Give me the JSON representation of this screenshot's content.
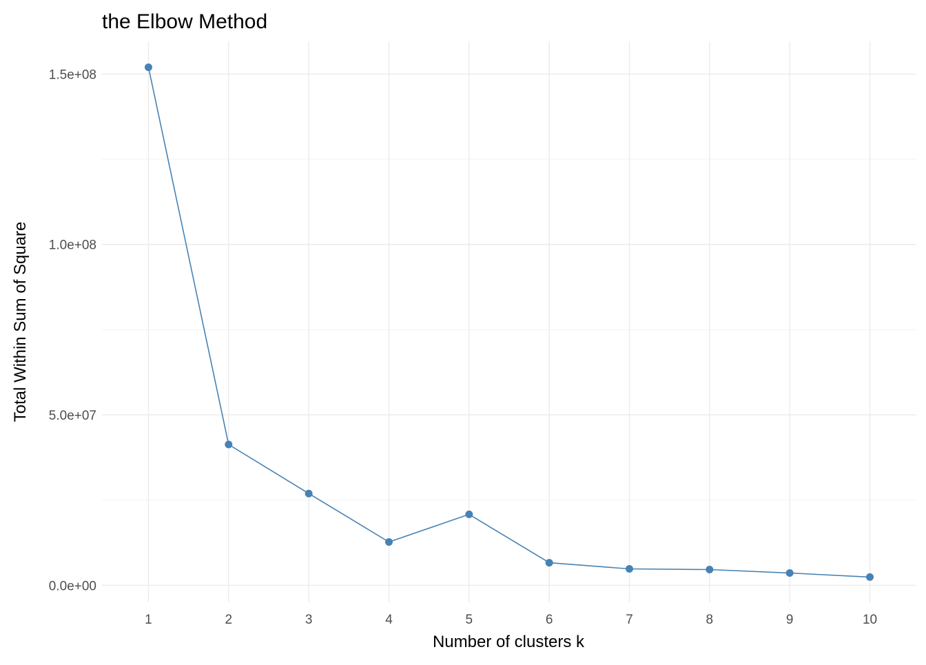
{
  "chart_data": {
    "type": "line",
    "title": "the Elbow Method",
    "xlabel": "Number of clusters k",
    "ylabel": "Total Within Sum of Square",
    "x": [
      1,
      2,
      3,
      4,
      5,
      6,
      7,
      8,
      9,
      10
    ],
    "y": [
      152000000,
      41300000,
      26900000,
      12700000,
      20800000,
      6600000,
      4800000,
      4600000,
      3600000,
      2400000
    ],
    "x_ticks": [
      "1",
      "2",
      "3",
      "4",
      "5",
      "6",
      "7",
      "8",
      "9",
      "10"
    ],
    "y_ticks": [
      {
        "value": 0,
        "label": "0.0e+00"
      },
      {
        "value": 50000000,
        "label": "5.0e+07"
      },
      {
        "value": 100000000,
        "label": "1.0e+08"
      },
      {
        "value": 150000000,
        "label": "1.5e+08"
      }
    ],
    "xlim": [
      0.42,
      10.58
    ],
    "ylim": [
      -5000000,
      159600000
    ],
    "grid": true,
    "colors": {
      "series": "#4682b4",
      "grid": "#ebebeb"
    }
  }
}
